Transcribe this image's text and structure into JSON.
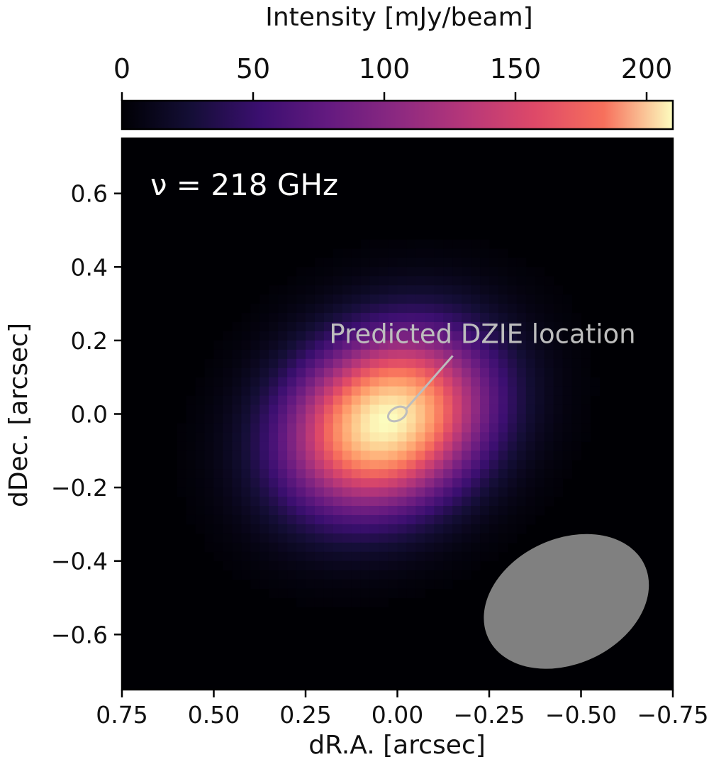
{
  "chart_data": {
    "type": "heatmap",
    "colormap": "magma",
    "xlabel": "dR.A. [arcsec]",
    "ylabel": "dDec. [arcsec]",
    "xlim": [
      0.75,
      -0.75
    ],
    "ylim": [
      -0.75,
      0.75
    ],
    "x_ticks": [
      0.75,
      0.5,
      0.25,
      0.0,
      -0.25,
      -0.5,
      -0.75
    ],
    "x_tick_labels": [
      "0.75",
      "0.50",
      "0.25",
      "0.00",
      "−0.25",
      "−0.50",
      "−0.75"
    ],
    "y_ticks": [
      0.6,
      0.4,
      0.2,
      0.0,
      -0.2,
      -0.4,
      -0.6
    ],
    "y_tick_labels": [
      "0.6",
      "0.4",
      "0.2",
      "0.0",
      "−0.2",
      "−0.4",
      "−0.6"
    ],
    "colorbar": {
      "label": "Intensity [mJy/beam]",
      "range": [
        0,
        210
      ],
      "ticks": [
        0,
        50,
        100,
        150,
        200
      ],
      "tick_labels": [
        "0",
        "50",
        "100",
        "150",
        "200"
      ],
      "location": "top"
    },
    "frequency_label": "ν =  218 GHz",
    "source": {
      "peak_intensity": 210,
      "center": [
        0.03,
        -0.02
      ],
      "sigma_major": 0.19,
      "sigma_minor": 0.15,
      "major_axis_angle_deg": 30,
      "grid_cells": 60
    },
    "annotation": {
      "text": "Predicted DZIE location",
      "point": [
        0.0,
        0.0
      ],
      "color": "#bdbdbd"
    },
    "beam": {
      "center": [
        -0.46,
        -0.51
      ],
      "major": 0.47,
      "minor": 0.34,
      "angle_deg": 25,
      "color": "#808080"
    }
  }
}
